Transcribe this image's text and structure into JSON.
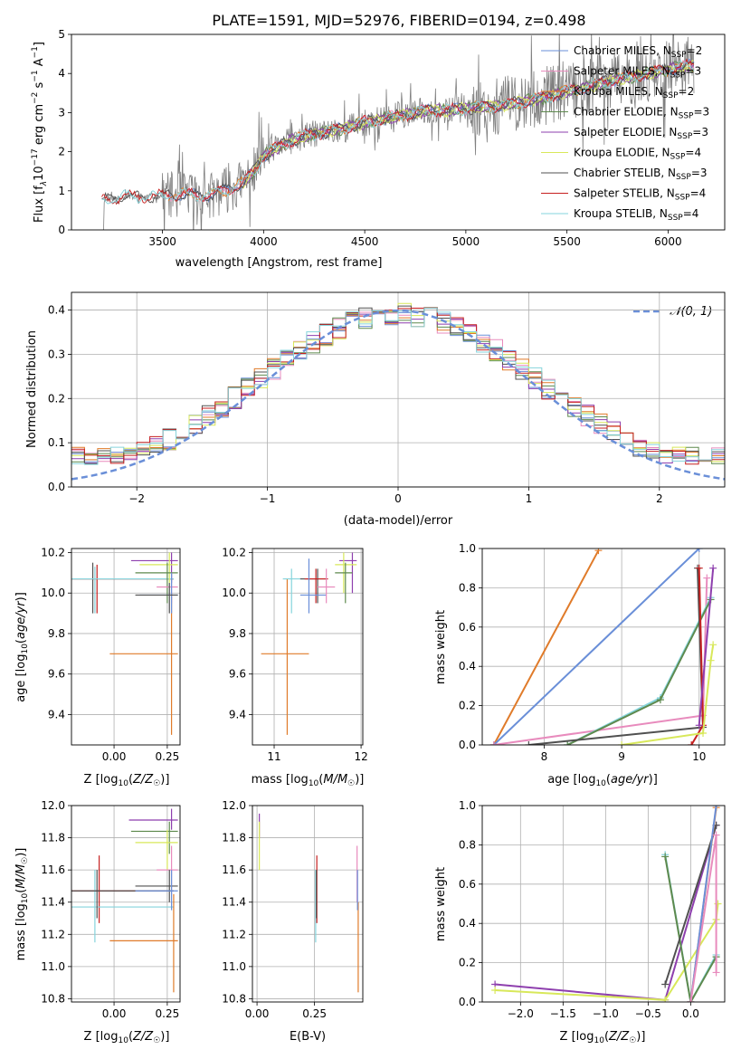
{
  "figure": {
    "title": "PLATE=1591, MJD=52976, FIBERID=0194, z=0.498"
  },
  "colors": {
    "chabrier_miles": "#6a8fd8",
    "salpeter_miles": "#e88bbd",
    "kroupa_miles": "#e07b2a",
    "chabrier_elodie": "#5e8a4e",
    "salpeter_elodie": "#8e3fae",
    "kroupa_elodie": "#d8e85a",
    "chabrier_stelib": "#505050",
    "salpeter_stelib": "#c62020",
    "kroupa_stelib": "#86d4dc",
    "grid": "#b0b0b0",
    "data": "#808080"
  },
  "chart_data": [
    {
      "id": "spectrum",
      "type": "line",
      "xlabel": "wavelength [Angstrom, rest frame]",
      "ylabel_parts": [
        "Flux [f",
        "λ",
        "10",
        "−17",
        " erg cm",
        "−2",
        " s",
        "−1",
        " A",
        "−1",
        "]"
      ],
      "xlim": [
        3050,
        6280
      ],
      "ylim": [
        0,
        5
      ],
      "xticks": [
        3500,
        4000,
        4500,
        5000,
        5500,
        6000
      ],
      "yticks": [
        0,
        1,
        2,
        3,
        4,
        5
      ],
      "grid": false,
      "legend_position": "top-right",
      "continuum": {
        "x": [
          3200,
          3300,
          3450,
          3550,
          3650,
          3750,
          3800,
          3900,
          3950,
          4000,
          4100,
          4200,
          4300,
          4400,
          4500,
          4600,
          4700,
          4800,
          4900,
          5000,
          5100,
          5200,
          5300,
          5400,
          5500,
          5600,
          5700,
          5800,
          5900,
          6000,
          6100,
          6130
        ],
        "y": [
          0.75,
          0.85,
          0.85,
          0.9,
          0.9,
          0.9,
          1.0,
          1.2,
          1.5,
          1.9,
          2.2,
          2.4,
          2.5,
          2.6,
          2.75,
          2.85,
          2.95,
          3.05,
          3.05,
          3.1,
          3.15,
          3.2,
          3.3,
          3.4,
          3.55,
          3.65,
          3.8,
          3.9,
          4.0,
          4.1,
          4.2,
          4.2
        ]
      },
      "series": [
        {
          "name": "Chabrier MILES, N$_{SSP}$=2",
          "label_base": "Chabrier MILES, N",
          "label_sub": "SSP",
          "label_end": "=2",
          "color_key": "chabrier_miles",
          "x_start": 3530
        },
        {
          "name": "Salpeter MILES, N$_{SSP}$=3",
          "label_base": "Salpeter MILES, N",
          "label_sub": "SSP",
          "label_end": "=3",
          "color_key": "salpeter_miles",
          "x_start": 3530
        },
        {
          "name": "Kroupa MILES, N$_{SSP}$=2",
          "label_base": "Kroupa MILES, N",
          "label_sub": "SSP",
          "label_end": "=2",
          "color_key": "kroupa_miles",
          "x_start": 3530
        },
        {
          "name": "Chabrier ELODIE, N$_{SSP}$=3",
          "label_base": "Chabrier ELODIE, N",
          "label_sub": "SSP",
          "label_end": "=3",
          "color_key": "chabrier_elodie",
          "x_start": 3900
        },
        {
          "name": "Salpeter ELODIE, N$_{SSP}$=3",
          "label_base": "Salpeter ELODIE, N",
          "label_sub": "SSP",
          "label_end": "=3",
          "color_key": "salpeter_elodie",
          "x_start": 3900
        },
        {
          "name": "Kroupa ELODIE, N$_{SSP}$=4",
          "label_base": "Kroupa ELODIE, N",
          "label_sub": "SSP",
          "label_end": "=4",
          "color_key": "kroupa_elodie",
          "x_start": 3900
        },
        {
          "name": "Chabrier STELIB, N$_{SSP}$=3",
          "label_base": "Chabrier STELIB, N",
          "label_sub": "SSP",
          "label_end": "=3",
          "color_key": "chabrier_stelib",
          "x_start": 3200
        },
        {
          "name": "Salpeter STELIB, N$_{SSP}$=4",
          "label_base": "Salpeter STELIB, N",
          "label_sub": "SSP",
          "label_end": "=4",
          "color_key": "salpeter_stelib",
          "x_start": 3200
        },
        {
          "name": "Kroupa STELIB, N$_{SSP}$=4",
          "label_base": "Kroupa STELIB, N",
          "label_sub": "SSP",
          "label_end": "=4",
          "color_key": "kroupa_stelib",
          "x_start": 3200
        }
      ]
    },
    {
      "id": "residuals",
      "type": "histogram",
      "xlabel": "(data-model)/error",
      "ylabel": "Normed distribution",
      "xlim": [
        -2.5,
        2.5
      ],
      "ylim": [
        0,
        0.44
      ],
      "xticks": [
        -2,
        -1,
        0,
        1,
        2
      ],
      "yticks": [
        0.0,
        0.1,
        0.2,
        0.3,
        0.4
      ],
      "grid": true,
      "legend_position": "top-right",
      "gaussian_label": "𝒩(0, 1)",
      "bin_width": 0.1
    },
    {
      "id": "age_vs_Z",
      "type": "errorbar",
      "xlabel_base": "Z [log",
      "xlabel_sub": "10",
      "xlabel_end": "(Z/Z",
      "xlabel_tail": ")]",
      "ylabel": "age  [log10(age/yr)]",
      "xlim": [
        -0.2,
        0.31
      ],
      "ylim": [
        9.25,
        10.22
      ],
      "xticks": [
        0.0,
        0.25
      ],
      "xtick_labels": [
        "0.00",
        "0.25"
      ],
      "yticks": [
        9.4,
        9.6,
        9.8,
        10.0,
        10.2
      ],
      "grid": true
    },
    {
      "id": "age_vs_mass",
      "type": "errorbar",
      "xlabel": "mass [log10(M/M☉)]",
      "xlim": [
        10.75,
        12.02
      ],
      "ylim": [
        9.25,
        10.22
      ],
      "xticks": [
        11,
        12
      ],
      "yticks": [
        9.4,
        9.6,
        9.8,
        10.0,
        10.2
      ],
      "grid": true
    },
    {
      "id": "weight_vs_age",
      "type": "line",
      "xlabel": "age  [log10(age/yr)]",
      "ylabel": "mass weight",
      "xlim": [
        7.2,
        10.33
      ],
      "ylim": [
        0,
        1.0
      ],
      "xticks": [
        8,
        9,
        10
      ],
      "yticks": [
        0.0,
        0.2,
        0.4,
        0.6,
        0.8,
        1.0
      ],
      "grid": true
    },
    {
      "id": "mass_vs_Z",
      "type": "errorbar",
      "ylabel": "mass [log10(M/M☉)]",
      "xlim": [
        -0.2,
        0.31
      ],
      "ylim": [
        10.78,
        12.0
      ],
      "xticks": [
        0.0,
        0.25
      ],
      "xtick_labels": [
        "0.00",
        "0.25"
      ],
      "yticks": [
        10.8,
        11.0,
        11.2,
        11.4,
        11.6,
        11.8,
        12.0
      ],
      "grid": true
    },
    {
      "id": "mass_vs_ebv",
      "type": "errorbar",
      "xlabel": "E(B-V)",
      "xlim": [
        -0.02,
        0.46
      ],
      "ylim": [
        10.78,
        12.0
      ],
      "xticks": [
        0.0,
        0.25
      ],
      "xtick_labels": [
        "0.00",
        "0.25"
      ],
      "yticks": [
        10.8,
        11.0,
        11.2,
        11.4,
        11.6,
        11.8,
        12.0
      ],
      "grid": true
    },
    {
      "id": "weight_vs_Z",
      "type": "line",
      "ylabel": "mass weight",
      "xlim": [
        -2.45,
        0.4
      ],
      "ylim": [
        0,
        1.0
      ],
      "xticks": [
        -2.0,
        -1.5,
        -1.0,
        -0.5,
        0.0
      ],
      "xtick_labels": [
        "−2.0",
        "−1.5",
        "−1.0",
        "−0.5",
        "0.0"
      ],
      "yticks": [
        0.0,
        0.2,
        0.4,
        0.6,
        0.8,
        1.0
      ],
      "grid": true
    }
  ]
}
